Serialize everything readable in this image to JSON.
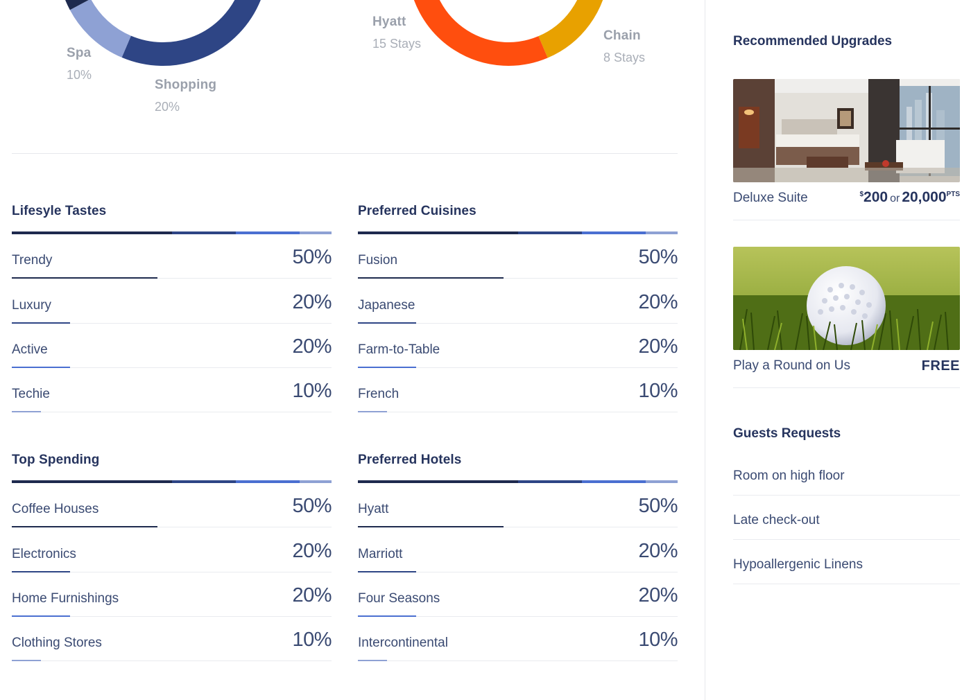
{
  "donuts": {
    "spending": {
      "labels": [
        {
          "name": "Spa",
          "value": "10%"
        },
        {
          "name": "Shopping",
          "value": "20%"
        }
      ]
    },
    "stays": {
      "labels": [
        {
          "name": "Hyatt",
          "value": "15 Stays"
        },
        {
          "name": "Chain",
          "value": "8 Stays"
        }
      ]
    }
  },
  "colors": {
    "navy": "#1e2a4e",
    "dark_blue": "#2e4585",
    "blue": "#4a6fd1",
    "light_blue": "#8ea1d4",
    "orange_red": "#ff4e0e",
    "amber": "#e8a100"
  },
  "sections": [
    {
      "title": "Lifesyle Tastes",
      "rows": [
        {
          "label": "Trendy",
          "value": "50%",
          "level": 0.5
        },
        {
          "label": "Luxury",
          "value": "20%",
          "level": 0.2
        },
        {
          "label": "Active",
          "value": "20%",
          "level": 0.2
        },
        {
          "label": "Techie",
          "value": "10%",
          "level": 0.1
        }
      ]
    },
    {
      "title": "Preferred Cuisines",
      "rows": [
        {
          "label": "Fusion",
          "value": "50%",
          "level": 0.5
        },
        {
          "label": "Japanese",
          "value": "20%",
          "level": 0.2
        },
        {
          "label": "Farm-to-Table",
          "value": "20%",
          "level": 0.2
        },
        {
          "label": "French",
          "value": "10%",
          "level": 0.1
        }
      ]
    },
    {
      "title": "Top Spending",
      "rows": [
        {
          "label": "Coffee Houses",
          "value": "50%",
          "level": 0.5
        },
        {
          "label": "Electronics",
          "value": "20%",
          "level": 0.2
        },
        {
          "label": "Home Furnishings",
          "value": "20%",
          "level": 0.2
        },
        {
          "label": "Clothing Stores",
          "value": "10%",
          "level": 0.1
        }
      ]
    },
    {
      "title": "Preferred Hotels",
      "rows": [
        {
          "label": "Hyatt",
          "value": "50%",
          "level": 0.5
        },
        {
          "label": "Marriott",
          "value": "20%",
          "level": 0.2
        },
        {
          "label": "Four Seasons",
          "value": "20%",
          "level": 0.2
        },
        {
          "label": "Intercontinental",
          "value": "10%",
          "level": 0.1
        }
      ]
    }
  ],
  "sidebar": {
    "upgrades_title": "Recommended Upgrades",
    "upgrades": [
      {
        "name": "Deluxe Suite",
        "price_symbol": "$",
        "price": "200",
        "or": "or",
        "points": "20,000",
        "points_unit": "PTS"
      },
      {
        "name": "Play a Round on Us",
        "badge": "FREE"
      }
    ],
    "requests_title": "Guests Requests",
    "requests": [
      "Room on high floor",
      "Late check-out",
      "Hypoallergenic Linens"
    ]
  }
}
